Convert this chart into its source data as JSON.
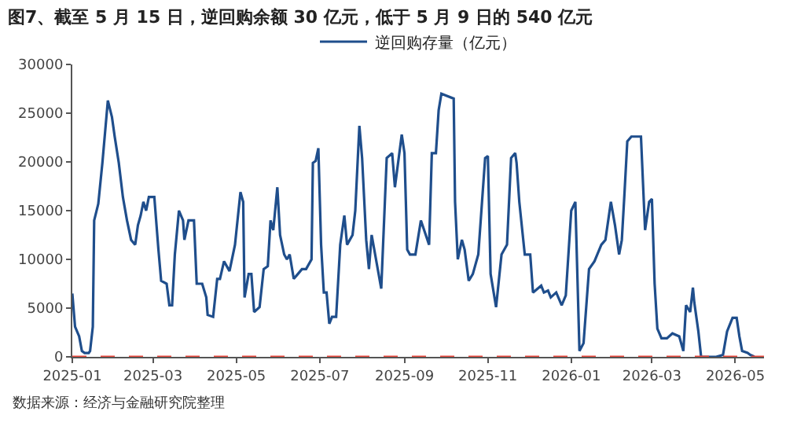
{
  "chart_data": {
    "type": "line",
    "title": "图7、截至 5 月 15 日，逆回购余额 30 亿元，低于 5 月 9 日的 540 亿元",
    "annotations": [
      "数据来源：经济与金融研究院整理"
    ],
    "x": [
      "2025-01-01",
      "2025-01-03",
      "2025-01-06",
      "2025-01-08",
      "2025-01-10",
      "2025-01-13",
      "2025-01-14",
      "2025-01-16",
      "2025-01-17",
      "2025-01-20",
      "2025-01-23",
      "2025-01-25",
      "2025-01-27",
      "2025-01-30",
      "2025-02-01",
      "2025-02-04",
      "2025-02-07",
      "2025-02-10",
      "2025-02-13",
      "2025-02-16",
      "2025-02-18",
      "2025-02-20",
      "2025-02-22",
      "2025-02-24",
      "2025-02-26",
      "2025-03-02",
      "2025-03-05",
      "2025-03-07",
      "2025-03-11",
      "2025-03-13",
      "2025-03-15",
      "2025-03-17",
      "2025-03-20",
      "2025-03-23",
      "2025-03-24",
      "2025-03-27",
      "2025-03-31",
      "2025-04-02",
      "2025-04-06",
      "2025-04-09",
      "2025-04-10",
      "2025-04-14",
      "2025-04-17",
      "2025-04-19",
      "2025-04-22",
      "2025-04-26",
      "2025-04-30",
      "2025-05-04",
      "2025-05-06",
      "2025-05-07",
      "2025-05-10",
      "2025-05-12",
      "2025-05-14",
      "2025-05-18",
      "2025-05-21",
      "2025-05-24",
      "2025-05-26",
      "2025-05-28",
      "2025-05-31",
      "2025-06-02",
      "2025-06-05",
      "2025-06-07",
      "2025-06-09",
      "2025-06-12",
      "2025-06-15",
      "2025-06-18",
      "2025-06-21",
      "2025-06-25",
      "2025-06-26",
      "2025-06-28",
      "2025-06-30",
      "2025-07-02",
      "2025-07-04",
      "2025-07-06",
      "2025-07-08",
      "2025-07-10",
      "2025-07-13",
      "2025-07-16",
      "2025-07-19",
      "2025-07-21",
      "2025-07-25",
      "2025-07-27",
      "2025-07-30",
      "2025-08-01",
      "2025-08-04",
      "2025-08-06",
      "2025-08-08",
      "2025-08-15",
      "2025-08-19",
      "2025-08-23",
      "2025-08-25",
      "2025-08-30",
      "2025-09-01",
      "2025-09-03",
      "2025-09-05",
      "2025-09-09",
      "2025-09-13",
      "2025-09-19",
      "2025-09-21",
      "2025-09-24",
      "2025-09-26",
      "2025-09-28",
      "2025-10-07",
      "2025-10-08",
      "2025-10-10",
      "2025-10-13",
      "2025-10-15",
      "2025-10-18",
      "2025-10-21",
      "2025-10-25",
      "2025-10-30",
      "2025-11-01",
      "2025-11-03",
      "2025-11-07",
      "2025-11-11",
      "2025-11-15",
      "2025-11-18",
      "2025-11-21",
      "2025-11-22",
      "2025-11-24",
      "2025-11-28",
      "2025-12-02",
      "2025-12-04",
      "2025-12-10",
      "2025-12-12",
      "2025-12-15",
      "2025-12-17",
      "2025-12-21",
      "2025-12-25",
      "2025-12-28",
      "2026-01-01",
      "2026-01-04",
      "2026-01-07",
      "2026-01-10",
      "2026-01-14",
      "2026-01-18",
      "2026-01-23",
      "2026-01-26",
      "2026-01-30",
      "2026-02-02",
      "2026-02-05",
      "2026-02-07",
      "2026-02-09",
      "2026-02-11",
      "2026-02-14",
      "2026-02-21",
      "2026-02-24",
      "2026-02-27",
      "2026-03-01",
      "2026-03-03",
      "2026-03-05",
      "2026-03-08",
      "2026-03-12",
      "2026-03-16",
      "2026-03-21",
      "2026-03-24",
      "2026-03-26",
      "2026-03-29",
      "2026-03-31",
      "2026-04-01",
      "2026-04-04",
      "2026-04-06",
      "2026-04-09",
      "2026-04-17",
      "2026-04-22",
      "2026-04-25",
      "2026-04-29",
      "2026-05-02",
      "2026-05-04",
      "2026-05-06",
      "2026-05-10",
      "2026-05-12",
      "2026-05-15"
    ],
    "series": [
      {
        "name": "逆回购存量（亿元）",
        "color": "#1f4e8c",
        "values": [
          6500,
          3100,
          2100,
          600,
          400,
          400,
          600,
          3100,
          14000,
          15700,
          19900,
          23100,
          26300,
          24600,
          22600,
          19900,
          16400,
          14000,
          12000,
          11500,
          13500,
          14500,
          15900,
          15000,
          16400,
          16400,
          11000,
          7800,
          7500,
          5300,
          5300,
          10500,
          15000,
          14000,
          12000,
          14000,
          14000,
          7500,
          7500,
          6100,
          4300,
          4100,
          8000,
          8000,
          9800,
          8800,
          11500,
          16900,
          15900,
          6100,
          8500,
          8500,
          4600,
          5100,
          9000,
          9300,
          14000,
          13000,
          17400,
          12500,
          10500,
          10000,
          10500,
          8000,
          8500,
          9000,
          9000,
          10000,
          19900,
          20100,
          21400,
          11500,
          6600,
          6600,
          3400,
          4100,
          4100,
          11500,
          14500,
          11500,
          12500,
          15000,
          23700,
          20400,
          12000,
          9000,
          12500,
          7000,
          20400,
          20900,
          17400,
          22800,
          20900,
          11000,
          10500,
          10500,
          14000,
          11500,
          20900,
          20900,
          25300,
          27000,
          26500,
          15900,
          10000,
          12000,
          11000,
          7800,
          8500,
          10500,
          20400,
          20600,
          8500,
          5100,
          10500,
          11500,
          20400,
          20900,
          19900,
          15900,
          10500,
          10500,
          6600,
          7300,
          6600,
          6800,
          6100,
          6600,
          5300,
          6300,
          15000,
          15900,
          600,
          1400,
          9000,
          9800,
          11500,
          12000,
          15900,
          13500,
          10500,
          12000,
          16900,
          22100,
          22600,
          22600,
          13000,
          15900,
          16200,
          7500,
          2900,
          1900,
          1900,
          2400,
          2100,
          600,
          5300,
          4600,
          7100,
          5600,
          2600,
          0,
          0,
          0,
          200,
          2600,
          4000,
          4000,
          2100,
          600,
          400,
          200,
          30
        ]
      }
    ],
    "xlim": [
      "2025-01-01",
      "2026-05-22"
    ],
    "xticks": [
      "2025-01",
      "2025-03",
      "2025-05",
      "2025-07",
      "2025-09",
      "2025-11",
      "2026-01",
      "2026-03",
      "2026-05"
    ],
    "ylim": [
      0,
      30000
    ],
    "yticks": [
      0,
      5000,
      10000,
      15000,
      20000,
      25000,
      30000
    ],
    "ref_lines": [
      {
        "axis": "y",
        "value": 0,
        "color": "#e8473c",
        "line_style": "dashed"
      }
    ],
    "legend": "top",
    "line_style": "solid",
    "marker": "none"
  }
}
